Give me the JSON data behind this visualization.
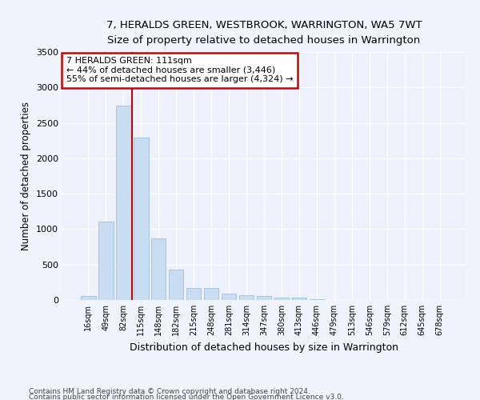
{
  "title": "7, HERALDS GREEN, WESTBROOK, WARRINGTON, WA5 7WT",
  "subtitle": "Size of property relative to detached houses in Warrington",
  "xlabel": "Distribution of detached houses by size in Warrington",
  "ylabel": "Number of detached properties",
  "bar_color": "#c9ddf2",
  "bar_edge_color": "#a0bedd",
  "background_color": "#edf1fb",
  "grid_color": "#ffffff",
  "fig_bg_color": "#f0f4fc",
  "categories": [
    "16sqm",
    "49sqm",
    "82sqm",
    "115sqm",
    "148sqm",
    "182sqm",
    "215sqm",
    "248sqm",
    "281sqm",
    "314sqm",
    "347sqm",
    "380sqm",
    "413sqm",
    "446sqm",
    "479sqm",
    "513sqm",
    "546sqm",
    "579sqm",
    "612sqm",
    "645sqm",
    "678sqm"
  ],
  "values": [
    55,
    1110,
    2740,
    2290,
    875,
    430,
    175,
    165,
    90,
    65,
    55,
    35,
    30,
    12,
    0,
    0,
    0,
    0,
    0,
    0,
    0
  ],
  "ylim": [
    0,
    3500
  ],
  "yticks": [
    0,
    500,
    1000,
    1500,
    2000,
    2500,
    3000,
    3500
  ],
  "vline_x_idx": 2.5,
  "annotation_title": "7 HERALDS GREEN: 111sqm",
  "annotation_line1": "← 44% of detached houses are smaller (3,446)",
  "annotation_line2": "55% of semi-detached houses are larger (4,324) →",
  "annotation_box_color": "#ffffff",
  "annotation_box_edge": "#cc0000",
  "vline_color": "#cc0000",
  "footer1": "Contains HM Land Registry data © Crown copyright and database right 2024.",
  "footer2": "Contains public sector information licensed under the Open Government Licence v3.0."
}
